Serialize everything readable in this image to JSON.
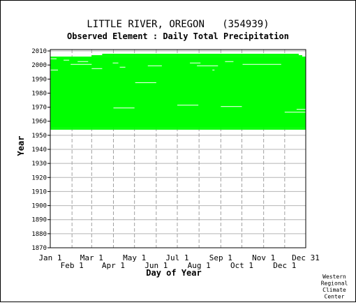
{
  "chart_data": {
    "type": "heatmap",
    "title": "LITTLE RIVER, OREGON   (354939)",
    "subtitle": "Observed Element : Daily Total Precipitation",
    "xlabel": "Day of Year",
    "ylabel": "Year",
    "credit": [
      "Western",
      "Regional",
      "Climate",
      "Center"
    ],
    "xlim": [
      1,
      365
    ],
    "ylim": [
      1870,
      2011
    ],
    "x_ticks_top_row": [
      {
        "label": "Jan 1",
        "day": 1
      },
      {
        "label": "Mar 1",
        "day": 60
      },
      {
        "label": "May 1",
        "day": 121
      },
      {
        "label": "Jul 1",
        "day": 182
      },
      {
        "label": "Sep 1",
        "day": 244
      },
      {
        "label": "Nov 1",
        "day": 305
      },
      {
        "label": "Dec 31",
        "day": 365
      }
    ],
    "x_ticks_bottom_row": [
      {
        "label": "Feb 1",
        "day": 32
      },
      {
        "label": "Apr 1",
        "day": 91
      },
      {
        "label": "Jun 1",
        "day": 152
      },
      {
        "label": "Aug 1",
        "day": 213
      },
      {
        "label": "Oct 1",
        "day": 274
      },
      {
        "label": "Dec 1",
        "day": 335
      }
    ],
    "y_ticks": [
      1870,
      1880,
      1890,
      1900,
      1910,
      1920,
      1930,
      1940,
      1950,
      1960,
      1970,
      1980,
      1990,
      2000,
      2010
    ],
    "data_color": "#00ff00",
    "data_coverage": {
      "full_record_years": [
        1955,
        2005
      ],
      "partial_years": [
        {
          "year": 1954,
          "day_start": 1,
          "day_end": 365
        },
        {
          "year": 2006,
          "day_start": 60,
          "day_end": 360
        },
        {
          "year": 2007,
          "day_start": 75,
          "day_end": 355
        }
      ],
      "gaps": [
        {
          "year": 2004,
          "day_start": 1,
          "day_end": 10
        },
        {
          "year": 2003,
          "day_start": 20,
          "day_end": 28
        },
        {
          "year": 2002,
          "day_start": 40,
          "day_end": 55
        },
        {
          "year": 2002,
          "day_start": 250,
          "day_end": 262
        },
        {
          "year": 2001,
          "day_start": 90,
          "day_end": 98
        },
        {
          "year": 2001,
          "day_start": 200,
          "day_end": 215
        },
        {
          "year": 2000,
          "day_start": 30,
          "day_end": 60
        },
        {
          "year": 2000,
          "day_start": 275,
          "day_end": 330
        },
        {
          "year": 1999,
          "day_start": 140,
          "day_end": 160
        },
        {
          "year": 1999,
          "day_start": 210,
          "day_end": 240
        },
        {
          "year": 1998,
          "day_start": 100,
          "day_end": 108
        },
        {
          "year": 1997,
          "day_start": 60,
          "day_end": 75
        },
        {
          "year": 1996,
          "day_start": 1,
          "day_end": 12
        },
        {
          "year": 1996,
          "day_start": 232,
          "day_end": 235
        },
        {
          "year": 1987,
          "day_start": 122,
          "day_end": 152
        },
        {
          "year": 1971,
          "day_start": 182,
          "day_end": 212
        },
        {
          "year": 1970,
          "day_start": 244,
          "day_end": 274
        },
        {
          "year": 1969,
          "day_start": 91,
          "day_end": 121
        },
        {
          "year": 1968,
          "day_start": 352,
          "day_end": 365
        },
        {
          "year": 1966,
          "day_start": 335,
          "day_end": 365
        }
      ]
    },
    "grid": true
  }
}
